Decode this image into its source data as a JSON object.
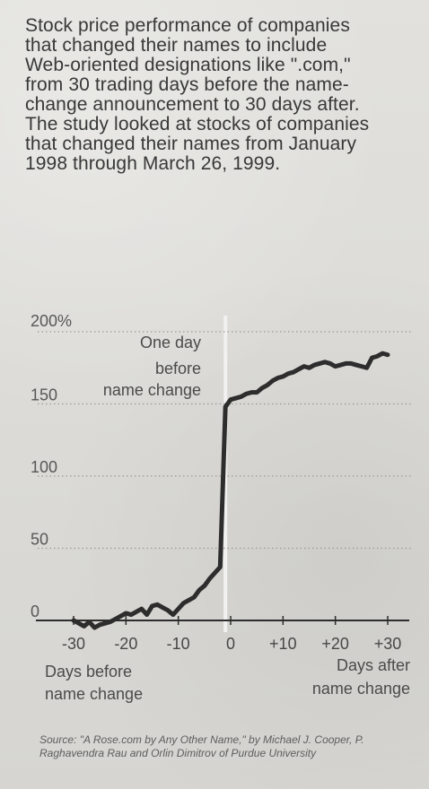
{
  "description": "Stock price performance of companies that changed their names to include Web-oriented designations like \".com,\" from 30 trading days before the name-change announcement to 30 days after. The study looked at stocks of companies that changed their names from January 1998 through March 26, 1999.",
  "source": "Source: \"A Rose.com by Any Other Name,\" by Michael J. Cooper, P. Raghavendra Rau and Orlin Dimitrov of Purdue University",
  "colors": {
    "background": "#d9d8d4",
    "text": "#383838",
    "line": "#2d2d2d",
    "grid": "#9b9b9b",
    "marker": "#f1f1f1"
  },
  "chart_data": {
    "type": "line",
    "title": "",
    "xlabel": "",
    "ylabel": "",
    "xlim": [
      -30,
      30
    ],
    "ylim": [
      0,
      200
    ],
    "x_ticks": [
      -30,
      -20,
      -10,
      0,
      10,
      20,
      30
    ],
    "x_tick_labels": [
      "-30",
      "-20",
      "-10",
      "0",
      "+10",
      "+20",
      "+30"
    ],
    "y_ticks": [
      0,
      50,
      100,
      150,
      200
    ],
    "y_tick_labels": [
      "0",
      "50",
      "100",
      "150",
      "200%"
    ],
    "grid": true,
    "annotations": {
      "event_label": "One day before name change",
      "left_axis_label": "Days before name change",
      "right_axis_label": "Days after name change"
    },
    "series": [
      {
        "x": [
          -30,
          -29,
          -28,
          -27,
          -26,
          -25,
          -24,
          -23,
          -22,
          -21,
          -20,
          -19,
          -18,
          -17,
          -16,
          -15,
          -14,
          -13,
          -12,
          -11,
          -10,
          -9,
          -8,
          -7,
          -6,
          -5,
          -4,
          -3,
          -2,
          -1,
          0,
          1,
          2,
          3,
          4,
          5,
          6,
          7,
          8,
          9,
          10,
          11,
          12,
          13,
          14,
          15,
          16,
          17,
          18,
          19,
          20,
          21,
          22,
          23,
          24,
          25,
          26,
          27,
          28,
          29,
          30
        ],
        "values": [
          0,
          -2,
          -4,
          -1,
          -5,
          -3,
          -2,
          -1,
          1,
          3,
          5,
          4,
          6,
          8,
          4,
          10,
          11,
          9,
          7,
          4,
          8,
          12,
          14,
          16,
          21,
          24,
          29,
          33,
          37,
          148,
          153,
          154,
          155,
          157,
          158,
          158,
          161,
          163,
          166,
          168,
          169,
          171,
          172,
          174,
          176,
          175,
          177,
          178,
          179,
          178,
          176,
          177,
          178,
          178,
          177,
          176,
          175,
          182,
          183,
          185,
          184
        ]
      }
    ]
  }
}
